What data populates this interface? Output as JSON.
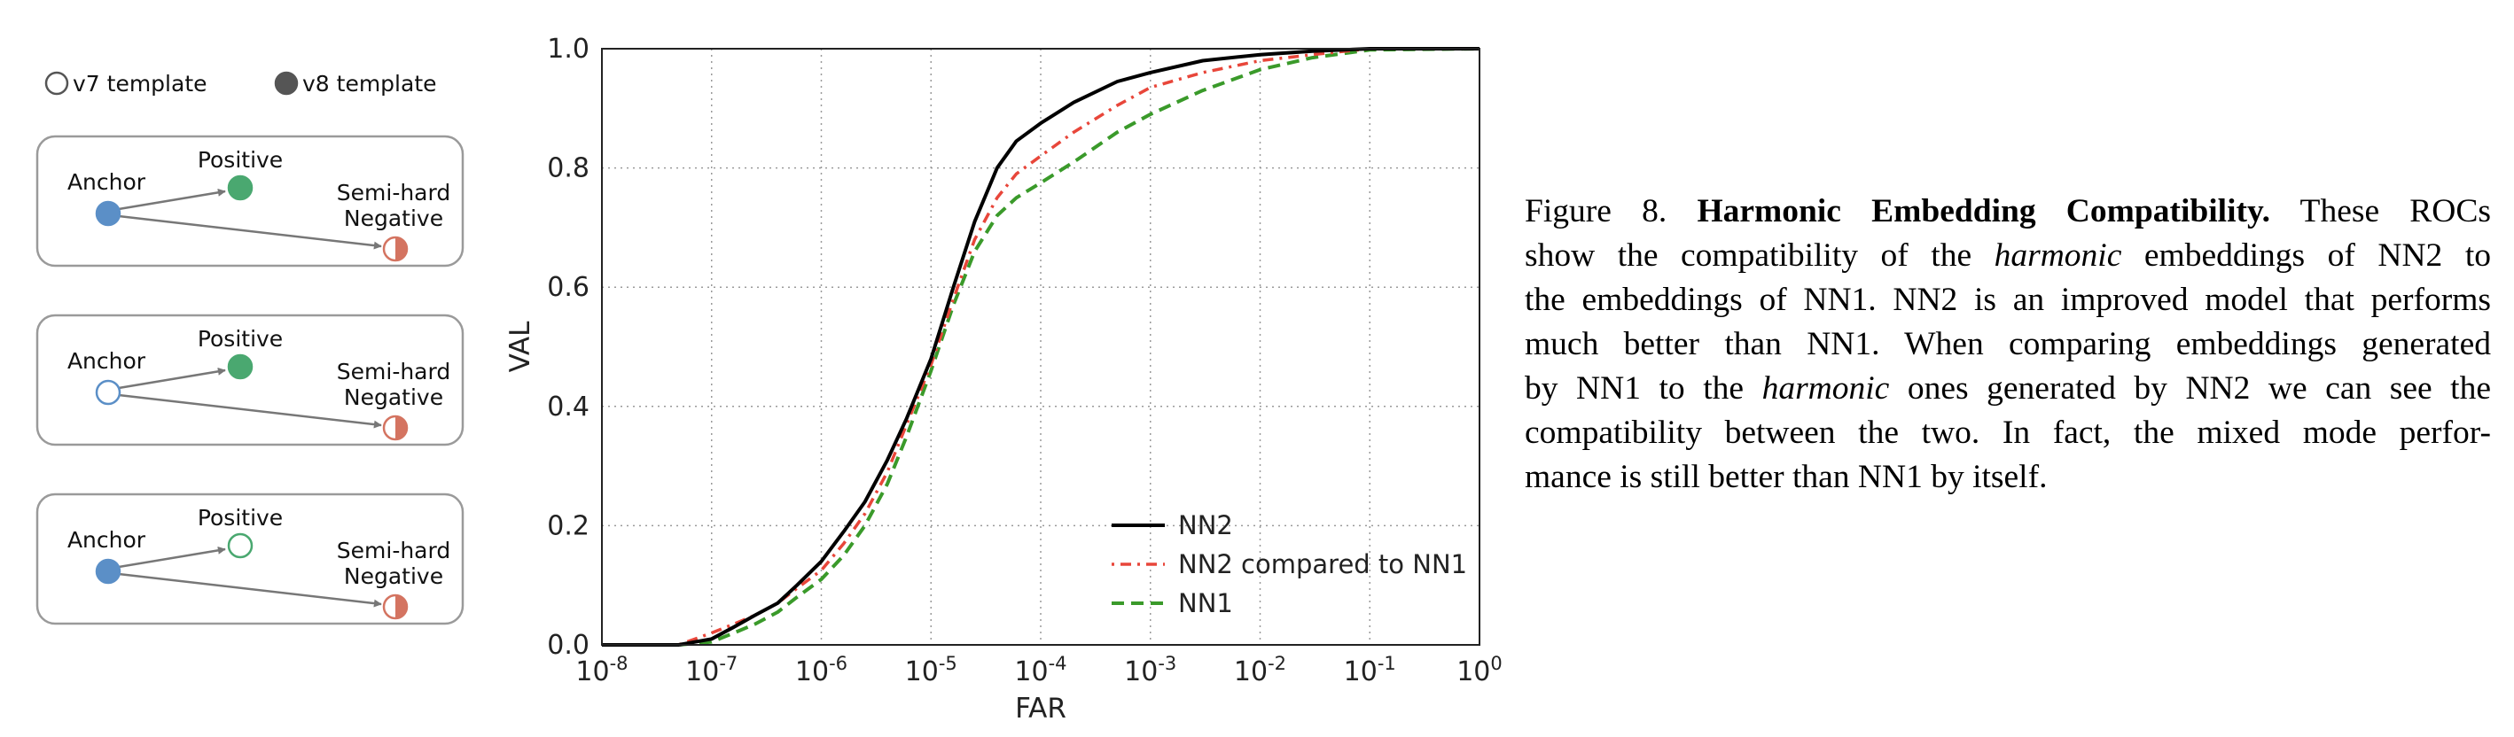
{
  "diagram": {
    "legend": {
      "v7": "v7 template",
      "v8": "v8 template"
    },
    "labels": {
      "anchor": "Anchor",
      "positive": "Positive",
      "negative_l1": "Semi-hard",
      "negative_l2": "Negative"
    },
    "colors": {
      "blue": "#5b8fc7",
      "green": "#4aa870",
      "red": "#d47461",
      "legend_dark": "#555555",
      "box_border": "#9a9a9a",
      "arrow": "#777777"
    },
    "panels": [
      {
        "anchor": "v8",
        "positive": "v8",
        "negative": "half"
      },
      {
        "anchor": "v7",
        "positive": "v8",
        "negative": "half"
      },
      {
        "anchor": "v8",
        "positive": "v7",
        "negative": "half"
      }
    ]
  },
  "chart_data": {
    "type": "line",
    "xscale": "log",
    "xlabel": "FAR",
    "ylabel": "VAL",
    "xlim": [
      1e-08,
      1
    ],
    "ylim": [
      0,
      1
    ],
    "grid": true,
    "legend_position": "lower-right",
    "x_ticks": [
      {
        "base": "10",
        "exp": "-8"
      },
      {
        "base": "10",
        "exp": "-7"
      },
      {
        "base": "10",
        "exp": "-6"
      },
      {
        "base": "10",
        "exp": "-5"
      },
      {
        "base": "10",
        "exp": "-4"
      },
      {
        "base": "10",
        "exp": "-3"
      },
      {
        "base": "10",
        "exp": "-2"
      },
      {
        "base": "10",
        "exp": "-1"
      },
      {
        "base": "10",
        "exp": "0"
      }
    ],
    "y_ticks": [
      "0.0",
      "0.2",
      "0.4",
      "0.6",
      "0.8",
      "1.0"
    ],
    "series": [
      {
        "name": "NN2",
        "color": "#000000",
        "style": "solid",
        "x": [
          1e-08,
          5e-08,
          1e-07,
          1.6e-07,
          2.5e-07,
          4e-07,
          6e-07,
          1e-06,
          1.6e-06,
          2.5e-06,
          4e-06,
          6e-06,
          1e-05,
          1.6e-05,
          2.5e-05,
          4e-05,
          6e-05,
          0.0001,
          0.0002,
          0.0005,
          0.001,
          0.003,
          0.01,
          0.03,
          0.1,
          1
        ],
        "y": [
          0.0,
          0.0,
          0.01,
          0.03,
          0.05,
          0.07,
          0.1,
          0.14,
          0.19,
          0.24,
          0.31,
          0.38,
          0.48,
          0.6,
          0.71,
          0.8,
          0.845,
          0.875,
          0.91,
          0.945,
          0.96,
          0.98,
          0.99,
          0.996,
          1.0,
          1.0
        ]
      },
      {
        "name": "NN2 compared to NN1",
        "color": "#e8463a",
        "style": "dashdot",
        "x": [
          1e-08,
          5e-08,
          1e-07,
          1.6e-07,
          2.5e-07,
          4e-07,
          6e-07,
          1e-06,
          1.6e-06,
          2.5e-06,
          4e-06,
          6e-06,
          1e-05,
          1.6e-05,
          2.5e-05,
          4e-05,
          6e-05,
          0.0001,
          0.0002,
          0.0005,
          0.001,
          0.003,
          0.01,
          0.03,
          0.1,
          1
        ],
        "y": [
          0.0,
          0.0,
          0.02,
          0.035,
          0.05,
          0.07,
          0.095,
          0.125,
          0.17,
          0.22,
          0.29,
          0.37,
          0.47,
          0.58,
          0.68,
          0.75,
          0.79,
          0.82,
          0.86,
          0.905,
          0.935,
          0.96,
          0.98,
          0.99,
          1.0,
          1.0
        ]
      },
      {
        "name": "NN1",
        "color": "#3a9a2a",
        "style": "dashed",
        "x": [
          1e-08,
          5e-08,
          1e-07,
          1.6e-07,
          2.5e-07,
          4e-07,
          6e-07,
          1e-06,
          1.6e-06,
          2.5e-06,
          4e-06,
          6e-06,
          1e-05,
          1.6e-05,
          2.5e-05,
          4e-05,
          6e-05,
          0.0001,
          0.0002,
          0.0005,
          0.001,
          0.003,
          0.01,
          0.03,
          0.1,
          1
        ],
        "y": [
          0.0,
          0.0,
          0.005,
          0.02,
          0.035,
          0.055,
          0.08,
          0.11,
          0.15,
          0.2,
          0.27,
          0.35,
          0.46,
          0.57,
          0.66,
          0.72,
          0.75,
          0.775,
          0.81,
          0.86,
          0.89,
          0.93,
          0.965,
          0.985,
          0.998,
          1.0
        ]
      }
    ]
  },
  "caption": {
    "lines": [
      [
        {
          "t": "Figure 8. ",
          "s": "n"
        },
        {
          "t": "Harmonic Embedding Compatibility.",
          "s": "b"
        },
        {
          "t": " These ROCs",
          "s": "n"
        }
      ],
      [
        {
          "t": "show the compatibility of the ",
          "s": "n"
        },
        {
          "t": "harmonic",
          "s": "i"
        },
        {
          "t": " embeddings of NN2 to",
          "s": "n"
        }
      ],
      [
        {
          "t": "the embeddings of NN1. NN2 is an improved model that performs",
          "s": "n"
        }
      ],
      [
        {
          "t": "much better than NN1. When comparing embeddings generated",
          "s": "n"
        }
      ],
      [
        {
          "t": "by NN1 to the ",
          "s": "n"
        },
        {
          "t": "harmonic",
          "s": "i"
        },
        {
          "t": " ones generated by NN2 we can see the",
          "s": "n"
        }
      ],
      [
        {
          "t": "compatibility between the two. In fact, the mixed mode perfor-",
          "s": "n"
        }
      ],
      [
        {
          "t": "mance is still better than NN1 by itself.",
          "s": "n"
        }
      ]
    ]
  }
}
